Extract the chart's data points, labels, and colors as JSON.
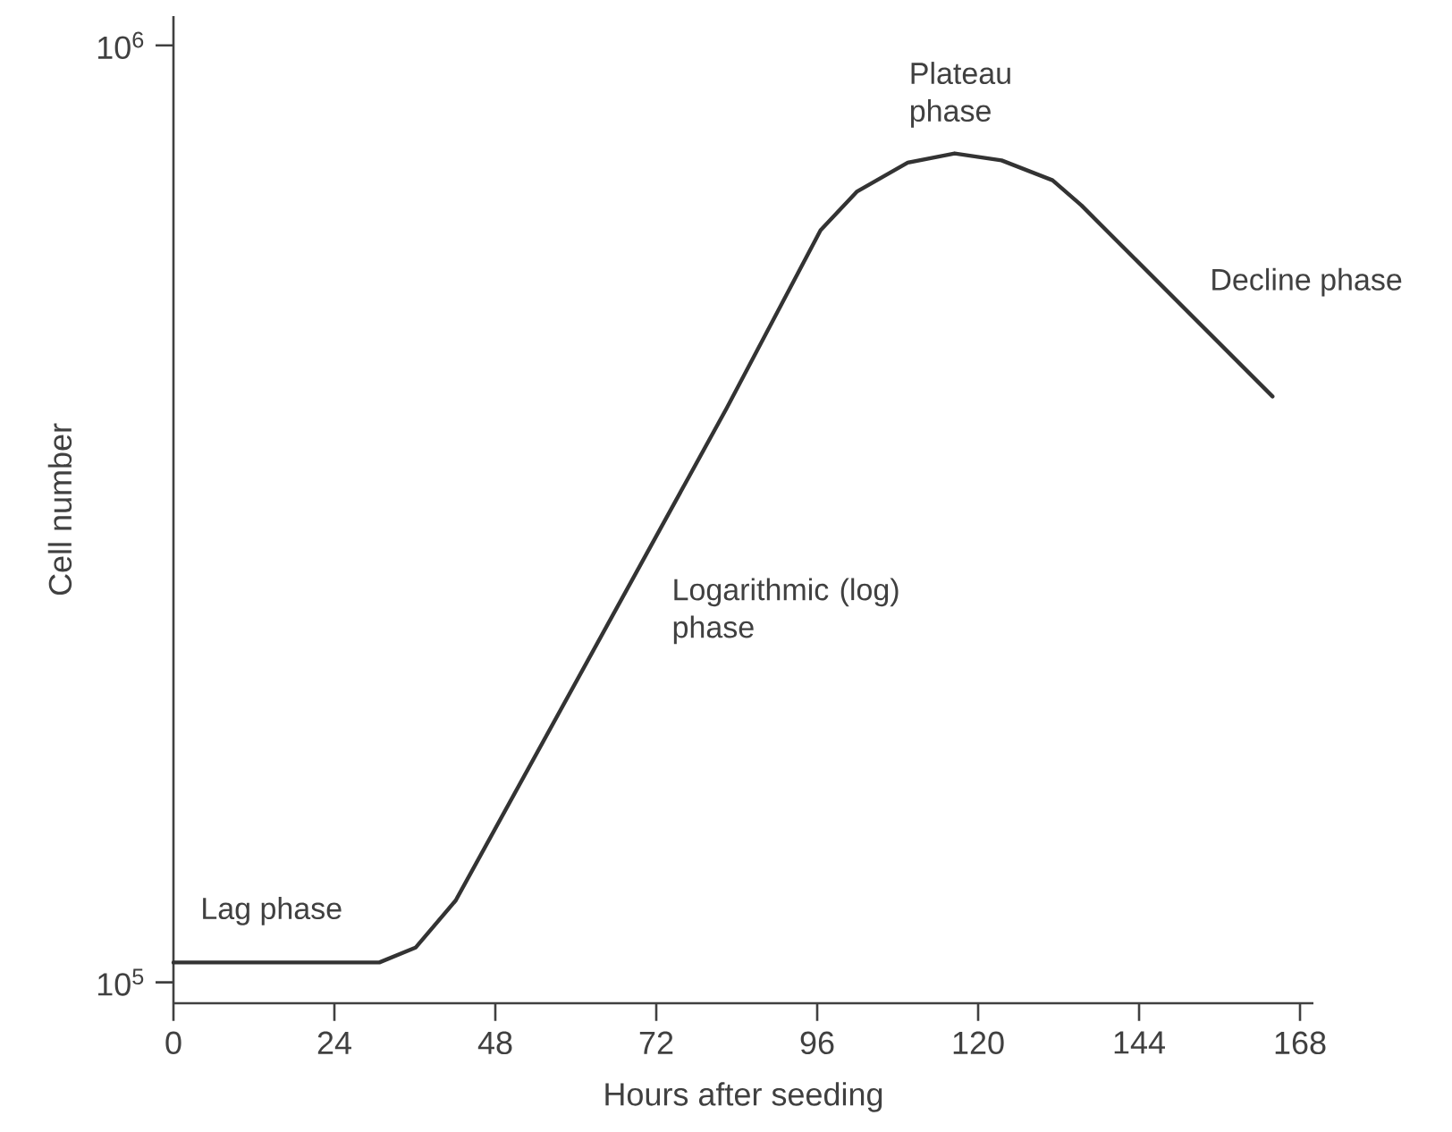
{
  "chart_data": {
    "type": "line",
    "xlabel": "Hours after seeding",
    "ylabel": "Cell number",
    "log": "y",
    "xlim": [
      0,
      170
    ],
    "ylim": [
      95000,
      1075000
    ],
    "xticks": [
      0,
      24,
      48,
      72,
      96,
      120,
      144,
      168
    ],
    "yticks": [
      {
        "value": 100000,
        "label": "10$^{5}$"
      },
      {
        "value": 1000000,
        "label": "10$^{6}$"
      }
    ],
    "series": [
      {
        "color": "#333333",
        "x": [
          0,
          30.7,
          36.1,
          42.1,
          82.5,
          96.5,
          101.9,
          109.5,
          116.5,
          123.5,
          131.1,
          135.4,
          163.9
        ],
        "values": [
          105000,
          105000,
          108900,
          122300,
          410000,
          635000,
          698000,
          750000,
          767000,
          754000,
          718000,
          675000,
          422000
        ]
      }
    ],
    "annotations": [
      "Lag phase",
      "Logarithmic (log) phase",
      "Plateau phase",
      "Decline phase"
    ]
  }
}
